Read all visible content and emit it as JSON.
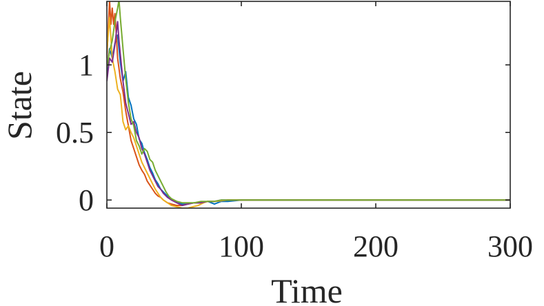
{
  "chart_data": {
    "type": "line",
    "title": "",
    "xlabel": "Time",
    "ylabel": "State",
    "xlim": [
      0,
      300
    ],
    "ylim": [
      -0.06,
      1.47
    ],
    "x_ticks": [
      0,
      100,
      200,
      300
    ],
    "y_ticks": [
      0,
      0.5,
      1
    ],
    "x_tick_labels": [
      "0",
      "100",
      "200",
      "300"
    ],
    "y_tick_labels": [
      "0",
      "0.5",
      "1"
    ],
    "grid": false,
    "legend": "none",
    "series": [
      {
        "color": "#0072BD",
        "x": [
          0,
          2,
          4,
          6,
          8,
          10,
          12,
          14,
          16,
          18,
          20,
          22,
          24,
          26,
          28,
          30,
          32,
          34,
          36,
          38,
          40,
          42,
          45,
          48,
          52,
          56,
          60,
          65,
          70,
          75,
          80,
          85,
          90,
          100,
          120,
          150,
          200,
          250,
          300
        ],
        "y": [
          0.95,
          1.12,
          1.05,
          1.16,
          1.22,
          1.02,
          0.88,
          0.95,
          0.76,
          0.7,
          0.6,
          0.56,
          0.45,
          0.42,
          0.35,
          0.3,
          0.24,
          0.2,
          0.15,
          0.12,
          0.08,
          0.06,
          0.03,
          0.01,
          -0.02,
          -0.03,
          -0.03,
          -0.02,
          -0.02,
          -0.01,
          -0.03,
          -0.01,
          -0.01,
          0.0,
          0.0,
          0.0,
          0.0,
          0.0,
          0.0
        ]
      },
      {
        "color": "#D95319",
        "x": [
          0,
          2,
          3,
          4,
          5,
          6,
          7,
          8,
          10,
          12,
          14,
          16,
          18,
          20,
          22,
          24,
          26,
          28,
          30,
          32,
          34,
          36,
          38,
          40,
          42,
          45,
          48,
          52,
          56,
          60,
          65,
          70,
          75,
          80,
          90,
          100,
          120,
          150,
          200,
          250,
          300
        ],
        "y": [
          1.05,
          1.48,
          1.3,
          1.42,
          1.3,
          1.38,
          1.22,
          1.05,
          0.9,
          0.8,
          0.66,
          0.55,
          0.44,
          0.38,
          0.32,
          0.26,
          0.22,
          0.19,
          0.14,
          0.11,
          0.08,
          0.05,
          0.03,
          0.02,
          0.0,
          -0.02,
          -0.03,
          -0.04,
          -0.04,
          -0.03,
          -0.02,
          -0.02,
          -0.01,
          -0.01,
          0.0,
          0.0,
          0.0,
          0.0,
          0.0,
          0.0,
          0.0
        ]
      },
      {
        "color": "#EDB120",
        "x": [
          0,
          2,
          4,
          6,
          8,
          10,
          12,
          14,
          16,
          18,
          20,
          22,
          24,
          26,
          28,
          30,
          32,
          34,
          36,
          38,
          40,
          42,
          45,
          48,
          52,
          56,
          60,
          64,
          68,
          70,
          72,
          75,
          80,
          90,
          100,
          120,
          150,
          200,
          250,
          300
        ],
        "y": [
          1.1,
          1.35,
          1.05,
          0.95,
          0.82,
          0.78,
          0.58,
          0.52,
          0.55,
          0.5,
          0.46,
          0.4,
          0.34,
          0.28,
          0.24,
          0.2,
          0.16,
          0.12,
          0.08,
          0.05,
          0.02,
          0.0,
          -0.02,
          -0.04,
          -0.05,
          -0.06,
          -0.06,
          -0.05,
          -0.04,
          -0.03,
          -0.02,
          -0.01,
          -0.01,
          0.0,
          0.0,
          0.0,
          0.0,
          0.0,
          0.0,
          0.0
        ]
      },
      {
        "color": "#7E2F8E",
        "x": [
          0,
          2,
          4,
          6,
          8,
          9,
          10,
          12,
          14,
          16,
          18,
          20,
          22,
          24,
          26,
          28,
          30,
          32,
          34,
          36,
          38,
          40,
          42,
          45,
          48,
          52,
          56,
          60,
          65,
          70,
          75,
          80,
          85,
          90,
          100,
          120,
          150,
          200,
          250,
          300
        ],
        "y": [
          0.88,
          1.05,
          1.02,
          1.15,
          1.32,
          1.18,
          1.08,
          0.88,
          0.72,
          0.64,
          0.56,
          0.58,
          0.5,
          0.46,
          0.38,
          0.34,
          0.28,
          0.22,
          0.18,
          0.14,
          0.1,
          0.08,
          0.05,
          0.02,
          0.0,
          -0.02,
          -0.04,
          -0.03,
          -0.02,
          -0.02,
          -0.01,
          -0.01,
          0.0,
          0.0,
          0.0,
          0.0,
          0.0,
          0.0,
          0.0,
          0.0
        ]
      },
      {
        "color": "#77AC30",
        "x": [
          0,
          2,
          4,
          6,
          8,
          9,
          10,
          12,
          14,
          16,
          18,
          20,
          22,
          24,
          26,
          28,
          30,
          32,
          34,
          36,
          38,
          40,
          42,
          44,
          46,
          48,
          52,
          56,
          60,
          65,
          70,
          75,
          80,
          85,
          90,
          100,
          110,
          120,
          150,
          200,
          250,
          300
        ],
        "y": [
          0.98,
          1.1,
          1.18,
          1.32,
          1.42,
          1.48,
          1.35,
          1.12,
          0.9,
          0.72,
          0.6,
          0.55,
          0.44,
          0.4,
          0.34,
          0.38,
          0.36,
          0.3,
          0.28,
          0.22,
          0.18,
          0.14,
          0.1,
          0.06,
          0.03,
          0.01,
          -0.01,
          -0.02,
          -0.02,
          -0.02,
          -0.01,
          -0.01,
          -0.01,
          0.0,
          0.0,
          0.0,
          0.0,
          0.0,
          0.0,
          0.0,
          0.0,
          0.0
        ]
      }
    ]
  }
}
